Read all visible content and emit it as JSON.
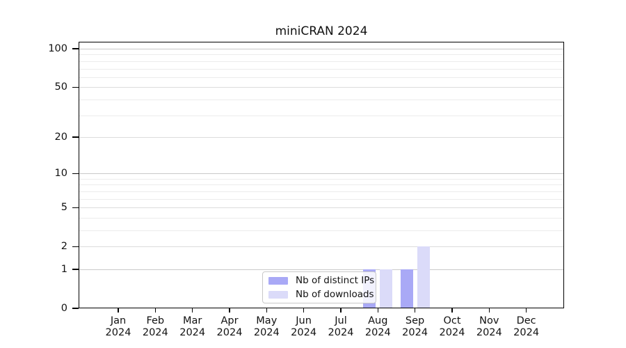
{
  "chart_data": {
    "type": "bar",
    "title": "miniCRAN 2024",
    "categories": [
      "Jan\n2024",
      "Feb\n2024",
      "Mar\n2024",
      "Apr\n2024",
      "May\n2024",
      "Jun\n2024",
      "Jul\n2024",
      "Aug\n2024",
      "Sep\n2024",
      "Oct\n2024",
      "Nov\n2024",
      "Dec\n2024"
    ],
    "series": [
      {
        "name": "Nb of distinct IPs",
        "color": "#a9a9f6",
        "values": [
          0,
          0,
          0,
          0,
          0,
          0,
          0,
          1,
          1,
          0,
          0,
          0
        ]
      },
      {
        "name": "Nb of downloads",
        "color": "#dbdbf9",
        "values": [
          0,
          0,
          0,
          0,
          0,
          0,
          0,
          1,
          2,
          0,
          0,
          0
        ]
      }
    ],
    "yscale": "log1p",
    "ylim": [
      0,
      100
    ],
    "yticks": [
      0,
      1,
      2,
      5,
      10,
      20,
      50,
      100
    ],
    "minor_gridline_values": [
      3,
      4,
      6,
      7,
      8,
      9,
      30,
      40,
      60,
      70,
      80,
      90
    ],
    "grid": "horizontal",
    "legend_position": "bottom-center",
    "colors": {
      "decade_grid": "#c9c9c9",
      "major_grid": "#dcdcdc",
      "minor_grid": "#ececec",
      "axis": "#000000",
      "background": "#ffffff"
    }
  }
}
